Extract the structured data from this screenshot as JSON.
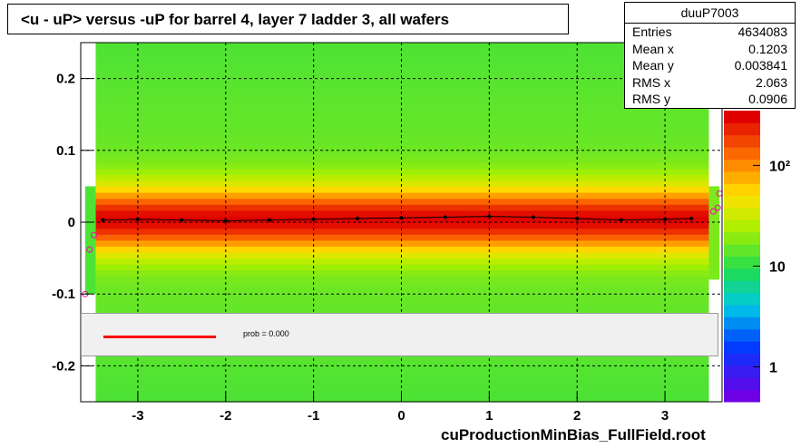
{
  "title": "<u - uP>       versus  -uP for barrel 4, layer 7 ladder 3, all wafers",
  "footer": "cuProductionMinBias_FullField.root",
  "stats": {
    "name": "duuP7003",
    "rows": [
      {
        "label": "Entries",
        "value": "4634083"
      },
      {
        "label": "Mean x",
        "value": "0.1203"
      },
      {
        "label": "Mean y",
        "value": "0.003841"
      },
      {
        "label": "RMS x",
        "value": "2.063"
      },
      {
        "label": "RMS y",
        "value": "0.0906"
      }
    ]
  },
  "legend": {
    "text": "prob = 0.000",
    "color": "#ff0000"
  },
  "chart_data": {
    "type": "heatmap",
    "title": "<u - uP>       versus  -uP for barrel 4, layer 7 ladder 3, all wafers",
    "xlabel": "",
    "ylabel": "",
    "xlim": [
      -3.65,
      3.65
    ],
    "ylim": [
      -0.25,
      0.25
    ],
    "x_ticks": [
      -3,
      -2,
      -1,
      0,
      1,
      2,
      3
    ],
    "y_ticks": [
      -0.2,
      -0.1,
      0,
      0.1,
      0.2
    ],
    "y_tick_labels": [
      "-0.2",
      "-0.1",
      "0",
      "0.1",
      "0.2"
    ],
    "grid": true,
    "z_scale": "log",
    "z_ticks": [
      1,
      10,
      100
    ],
    "z_tick_labels": [
      "1",
      "10",
      "10²"
    ],
    "profile": {
      "name": "",
      "x": [
        -3.4,
        -3.0,
        -2.5,
        -2.0,
        -1.5,
        -1.0,
        -0.5,
        0.0,
        0.5,
        1.0,
        1.5,
        2.0,
        2.5,
        3.0,
        3.3
      ],
      "y": [
        0.003,
        0.004,
        0.003,
        0.002,
        0.003,
        0.004,
        0.005,
        0.006,
        0.007,
        0.008,
        0.007,
        0.005,
        0.003,
        0.004,
        0.005
      ]
    },
    "edge_points": {
      "x": [
        -3.6,
        -3.55,
        -3.5,
        3.55,
        3.6,
        3.62
      ],
      "y": [
        -0.1,
        -0.038,
        -0.018,
        0.015,
        0.02,
        0.04
      ]
    }
  }
}
